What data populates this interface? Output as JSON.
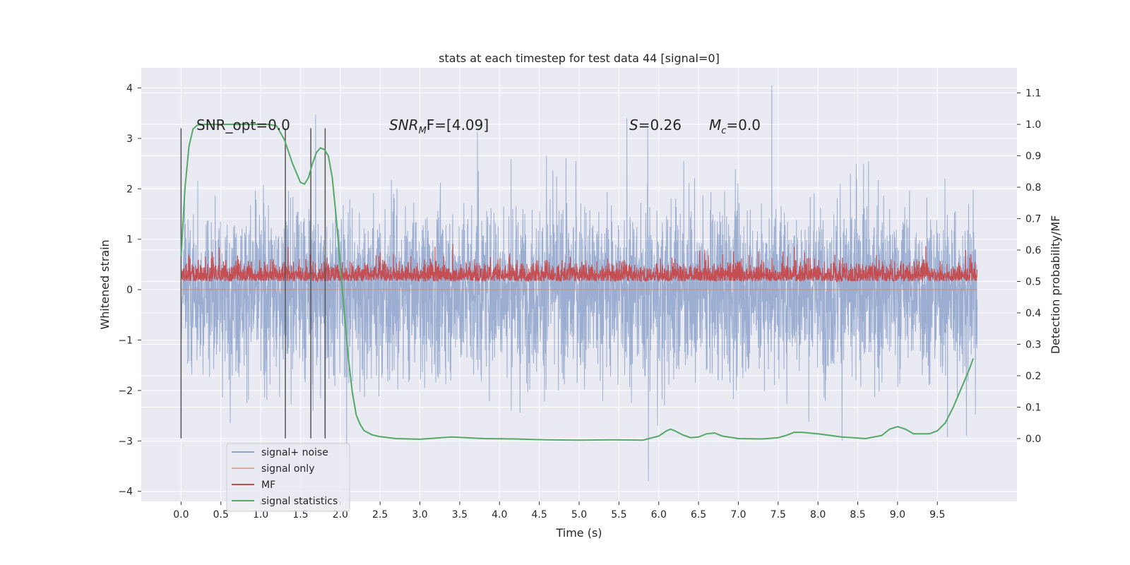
{
  "chart_data": {
    "type": "line",
    "title": "stats at each timestep for test data 44 [signal=0]",
    "xlabel": "Time (s)",
    "ylabel": "Whitened strain",
    "ylabel_right": "Detection probability/MF",
    "xlim": [
      -0.5,
      10.5
    ],
    "ylim": [
      -4.2,
      4.4
    ],
    "ylim_right": [
      -0.2,
      1.18
    ],
    "x_ticks": [
      "0.0",
      "0.5",
      "1.0",
      "1.5",
      "2.0",
      "2.5",
      "3.0",
      "3.5",
      "4.0",
      "4.5",
      "5.0",
      "5.5",
      "6.0",
      "6.5",
      "7.0",
      "7.5",
      "8.0",
      "8.5",
      "9.0",
      "9.5"
    ],
    "y_ticks": [
      "4",
      "3",
      "2",
      "1",
      "0",
      "−1",
      "−2",
      "−3",
      "−4"
    ],
    "y_ticks_right": [
      "1.1",
      "1.0",
      "0.9",
      "0.8",
      "0.7",
      "0.6",
      "0.5",
      "0.4",
      "0.3",
      "0.2",
      "0.1",
      "0.0"
    ],
    "grid": true,
    "legend": {
      "placement": "lower-left",
      "entries": [
        "signal+ noise",
        "signal only",
        "MF",
        "signal statistics"
      ]
    },
    "annotations": {
      "snr_opt": "SNR_opt=0.0",
      "snr_mf_name": "SNR",
      "snr_mf_sub": "M",
      "snr_mf_tail": "F=[4.09]",
      "s_name": "S",
      "s_value": "=0.26",
      "mc_name": "M",
      "mc_sub": "c",
      "mc_value": "=0.0"
    },
    "vertical_markers_x": [
      0.0,
      1.31,
      1.63,
      1.81
    ],
    "vertical_markers_range": [
      -2.95,
      3.2
    ],
    "series": [
      {
        "name": "signal+ noise",
        "axis": "left",
        "x_range": [
          0.0,
          10.0
        ],
        "approx_band": [
          -2.0,
          2.0
        ],
        "peak_values": [
          [
            1.69,
            3.47
          ],
          [
            7.42,
            4.05
          ],
          [
            5.87,
            -3.8
          ],
          [
            2.08,
            -3.3
          ],
          [
            5.6,
            3.4
          ]
        ]
      },
      {
        "name": "signal only",
        "axis": "left",
        "x_range": [
          0.0,
          10.0
        ],
        "values_constant": 0.0
      },
      {
        "name": "MF",
        "axis": "right",
        "x_range": [
          0.0,
          10.0
        ],
        "approx_band": [
          0.5,
          0.62
        ],
        "max_value": 0.64
      },
      {
        "name": "signal statistics",
        "axis": "right",
        "x": [
          0.0,
          0.05,
          0.1,
          0.15,
          0.2,
          0.3,
          0.5,
          0.7,
          0.9,
          1.1,
          1.2,
          1.3,
          1.4,
          1.5,
          1.55,
          1.6,
          1.65,
          1.7,
          1.75,
          1.8,
          1.85,
          1.9,
          1.95,
          2.0,
          2.05,
          2.1,
          2.15,
          2.2,
          2.25,
          2.3,
          2.4,
          2.5,
          2.7,
          3.0,
          3.4,
          3.8,
          4.2,
          4.6,
          5.0,
          5.4,
          5.8,
          6.0,
          6.1,
          6.15,
          6.2,
          6.3,
          6.4,
          6.5,
          6.6,
          6.7,
          6.8,
          7.0,
          7.3,
          7.5,
          7.6,
          7.7,
          7.8,
          8.0,
          8.3,
          8.6,
          8.8,
          8.9,
          9.0,
          9.1,
          9.2,
          9.4,
          9.5,
          9.6,
          9.7,
          9.8,
          9.9,
          9.95
        ],
        "values": [
          0.58,
          0.8,
          0.93,
          0.985,
          0.997,
          1.0,
          1.0,
          1.0,
          1.0,
          1.0,
          0.995,
          0.95,
          0.875,
          0.815,
          0.81,
          0.83,
          0.875,
          0.91,
          0.925,
          0.92,
          0.9,
          0.83,
          0.7,
          0.55,
          0.4,
          0.26,
          0.15,
          0.075,
          0.045,
          0.025,
          0.012,
          0.006,
          0.0,
          -0.002,
          0.005,
          0.0,
          -0.001,
          -0.004,
          -0.005,
          -0.004,
          -0.005,
          0.008,
          0.025,
          0.03,
          0.025,
          0.012,
          0.003,
          0.005,
          0.015,
          0.018,
          0.008,
          0.0,
          -0.001,
          0.003,
          0.01,
          0.02,
          0.02,
          0.015,
          0.005,
          0.0,
          0.01,
          0.03,
          0.038,
          0.03,
          0.015,
          0.015,
          0.025,
          0.05,
          0.1,
          0.16,
          0.22,
          0.255
        ]
      }
    ]
  },
  "colors": {
    "background": "#eaeaf2",
    "grid": "#ffffff",
    "noise": "#4c72b0",
    "signal_only": "#dd8452",
    "mf": "#c44e52",
    "stat": "#55a868",
    "marker": "#555555",
    "legend_border": "#cccccc"
  }
}
